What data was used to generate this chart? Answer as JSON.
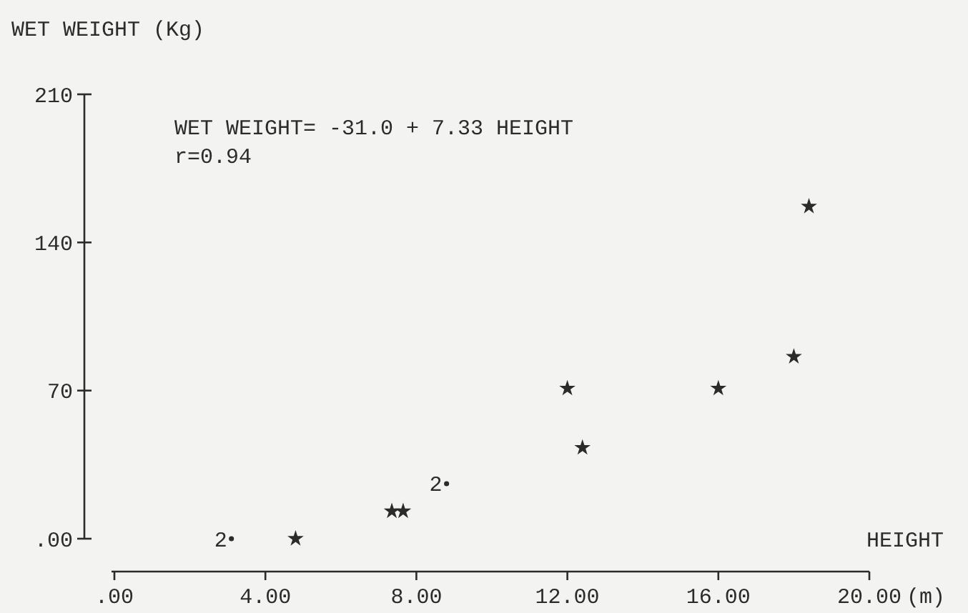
{
  "chart_data": {
    "type": "scatter",
    "ylabel": "WET WEIGHT (Kg)",
    "xlabel": "HEIGHT",
    "annotations": [
      "WET WEIGHT= -31.0 + 7.33 HEIGHT\nr=0.94",
      "(m)",
      {
        "text": "2",
        "x": 3.1,
        "y": 0
      },
      {
        "text": "2",
        "x": 8.8,
        "y": 26
      }
    ],
    "series": [
      {
        "color": "#2b2b2b",
        "marker": "star",
        "x": [
          4.8,
          7.35,
          7.65,
          12.0,
          12.4,
          16.0,
          18.0,
          18.4
        ],
        "values": [
          0,
          13,
          13,
          71,
          43,
          71,
          86,
          157
        ]
      },
      {
        "color": "#2b2b2b",
        "marker": "circle",
        "x": [
          3.1,
          8.8
        ],
        "values": [
          0,
          26
        ]
      }
    ],
    "xlim": [
      0,
      20
    ],
    "xticks": [
      {
        "value": 0,
        "label": ".00"
      },
      {
        "value": 4,
        "label": "4.00"
      },
      {
        "value": 8,
        "label": "8.00"
      },
      {
        "value": 12,
        "label": "12.00"
      },
      {
        "value": 16,
        "label": "16.00"
      },
      {
        "value": 20,
        "label": "20.00"
      }
    ],
    "ylim": [
      0,
      210
    ],
    "yticks": [
      {
        "value": 0,
        "label": ".00"
      },
      70,
      140,
      210
    ],
    "grid": false
  }
}
